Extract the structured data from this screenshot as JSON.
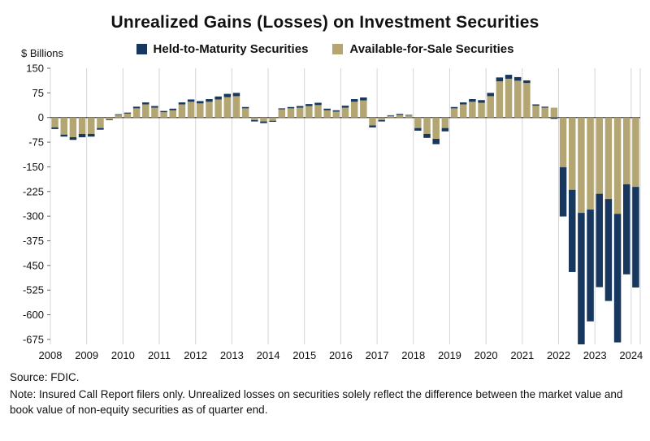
{
  "title": "Unrealized Gains (Losses) on Investment Securities",
  "y_axis_unit": "$ Billions",
  "legend": [
    {
      "label": "Held-to-Maturity Securities",
      "color": "#17375e"
    },
    {
      "label": "Available-for-Sale Securities",
      "color": "#b3a672"
    }
  ],
  "footnotes": {
    "source": "Source: FDIC.",
    "note": "Note: Insured Call Report filers only. Unrealized losses on securities solely reflect the difference between the market value and book value of non-equity securities as of quarter end."
  },
  "chart_data": {
    "type": "bar",
    "stacked": true,
    "title": "Unrealized Gains (Losses) on Investment Securities",
    "ylabel": "$ Billions",
    "xlabel": "",
    "frequency": "quarterly",
    "x_start": "2008 Q1",
    "x_end": "2024 Q1",
    "x_tick_labels": [
      "2008",
      "2009",
      "2010",
      "2011",
      "2012",
      "2013",
      "2014",
      "2015",
      "2016",
      "2017",
      "2018",
      "2019",
      "2020",
      "2021",
      "2022",
      "2023",
      "2024"
    ],
    "ylim": [
      -690,
      150
    ],
    "y_ticks": [
      150,
      75,
      0,
      -75,
      -150,
      -225,
      -300,
      -375,
      -450,
      -525,
      -600,
      -675
    ],
    "grid": "vertical-year-lines",
    "legend_position": "top",
    "series": [
      {
        "name": "Held-to-Maturity Securities",
        "color": "#17375e",
        "values": [
          -5,
          -6,
          -8,
          -10,
          -8,
          -5,
          -2,
          2,
          3,
          5,
          6,
          5,
          4,
          5,
          6,
          7,
          7,
          8,
          9,
          10,
          10,
          4,
          -4,
          -5,
          -3,
          3,
          4,
          5,
          6,
          7,
          5,
          4,
          6,
          8,
          9,
          -6,
          -4,
          2,
          3,
          2,
          -8,
          -12,
          -16,
          -10,
          4,
          6,
          8,
          8,
          10,
          12,
          12,
          11,
          8,
          4,
          3,
          -4,
          -150,
          -250,
          -400,
          -340,
          -284,
          -310,
          -391,
          -274,
          -306
        ]
      },
      {
        "name": "Available-for-Sale Securities",
        "color": "#b3a672",
        "values": [
          -30,
          -52,
          -60,
          -50,
          -50,
          -32,
          -6,
          8,
          12,
          28,
          40,
          30,
          16,
          22,
          40,
          48,
          43,
          48,
          55,
          62,
          65,
          28,
          -8,
          -12,
          -10,
          25,
          28,
          30,
          35,
          38,
          22,
          18,
          30,
          48,
          52,
          -24,
          -8,
          5,
          8,
          6,
          -32,
          -50,
          -65,
          -32,
          28,
          40,
          48,
          45,
          65,
          110,
          118,
          112,
          105,
          36,
          30,
          30,
          -151,
          -220,
          -290,
          -280,
          -232,
          -248,
          -293,
          -203,
          -211
        ]
      }
    ]
  }
}
